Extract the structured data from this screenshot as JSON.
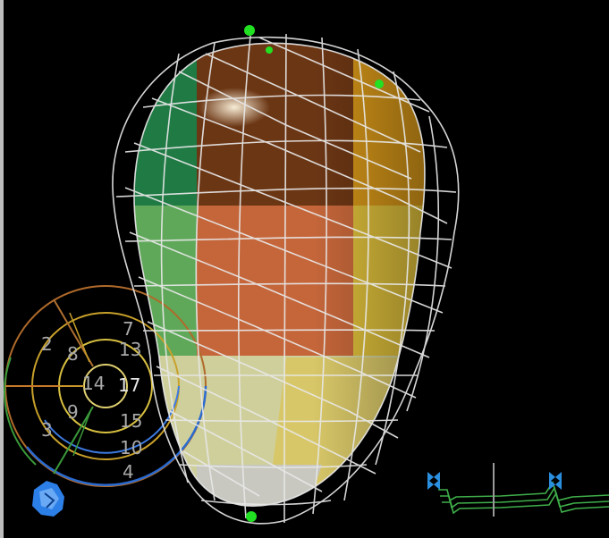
{
  "bullseye": {
    "segments": [
      {
        "id": "seg-2",
        "label": "2"
      },
      {
        "id": "seg-3",
        "label": "3"
      },
      {
        "id": "seg-8",
        "label": "8"
      },
      {
        "id": "seg-9",
        "label": "9"
      },
      {
        "id": "seg-13",
        "label": "13"
      },
      {
        "id": "seg-14",
        "label": "14"
      },
      {
        "id": "seg-15",
        "label": "15"
      },
      {
        "id": "seg-17",
        "label": "17"
      },
      {
        "id": "seg-10",
        "label": "10"
      },
      {
        "id": "seg-4",
        "label": "4"
      },
      {
        "id": "seg-7",
        "label": "7"
      }
    ]
  },
  "colors": {
    "background": "#000000",
    "wireframe": "#e8e8e8",
    "marker": "#22e022",
    "ecg_trace": "#3fae4a",
    "ecg_marker": "#2b8fe0",
    "orientation_icon": "#2d7fe8"
  },
  "icons": {
    "orientation": "orientation-cube-icon",
    "ecg_left_marker": "bowtie-marker-icon",
    "ecg_right_marker": "bowtie-marker-icon"
  }
}
